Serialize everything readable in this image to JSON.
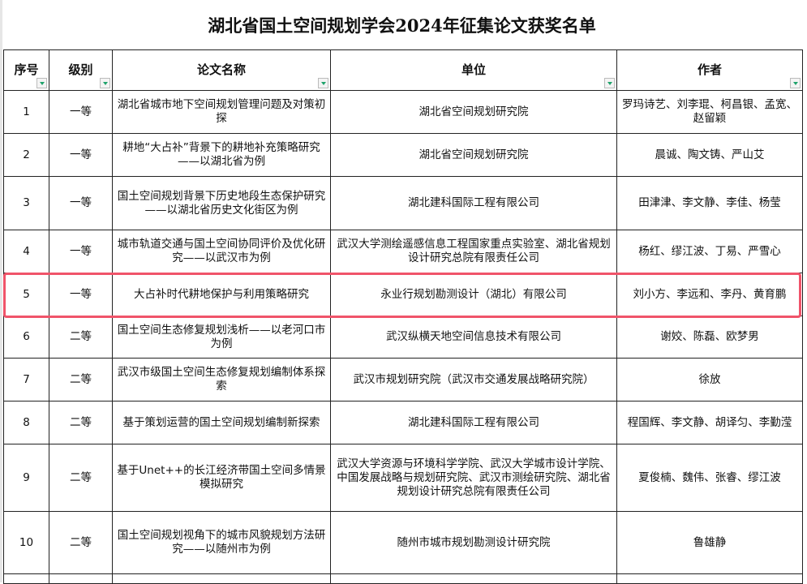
{
  "title": "湖北省国土空间规划学会2024年征集论文获奖名单",
  "headers": [
    "序号",
    "级别",
    "论文名称",
    "单位",
    "作者"
  ],
  "rows": [
    {
      "no": "1",
      "level": "一等",
      "paper": "湖北省城市地下空间规划管理问题及对策初探",
      "unit": "湖北省空间规划研究院",
      "authors": "罗玛诗艺、刘李琨、柯昌银、孟宽、赵留颖"
    },
    {
      "no": "2",
      "level": "一等",
      "paper": "耕地“大占补”背景下的耕地补充策略研究——以湖北省为例",
      "unit": "湖北省空间规划研究院",
      "authors": "晨诚、陶文铸、严山艾"
    },
    {
      "no": "3",
      "level": "一等",
      "paper": "国土空间规划背景下历史地段生态保护研究——以湖北省历史文化街区为例",
      "unit": "湖北建科国际工程有限公司",
      "authors": "田津津、李文静、李佳、杨莹"
    },
    {
      "no": "4",
      "level": "一等",
      "paper": "城市轨道交通与国土空间协同评价及优化研究——以武汉市为例",
      "unit": "武汉大学测绘遥感信息工程国家重点实验室、湖北省规划设计研究总院有限责任公司",
      "authors": "杨红、缪江波、丁易、严雪心"
    },
    {
      "no": "5",
      "level": "一等",
      "paper": "大占补时代耕地保护与利用策略研究",
      "unit": "永业行规划勘测设计（湖北）有限公司",
      "authors": "刘小方、李远和、李丹、黄育鹏"
    },
    {
      "no": "6",
      "level": "二等",
      "paper": "国土空间生态修复规划浅析——以老河口市为例",
      "unit": "武汉纵横天地空间信息技术有限公司",
      "authors": "谢姣、陈磊、欧梦男"
    },
    {
      "no": "7",
      "level": "二等",
      "paper": "武汉市级国土空间生态修复规划编制体系探索",
      "unit": "武汉市规划研究院（武汉市交通发展战略研究院）",
      "authors": "徐放"
    },
    {
      "no": "8",
      "level": "二等",
      "paper": "基于策划运营的国土空间规划编制新探索",
      "unit": "湖北建科国际工程有限公司",
      "authors": "程国辉、李文静、胡译匀、李勤滢"
    },
    {
      "no": "9",
      "level": "二等",
      "paper": "基于Unet++的长江经济带国土空间多情景模拟研究",
      "unit": "武汉大学资源与环境科学学院、武汉大学城市设计学院、中国发展战略与规划研究院、武汉市测绘研究院、湖北省规划设计研究总院有限责任公司",
      "authors": "夏俊楠、魏伟、张睿、缪江波"
    },
    {
      "no": "10",
      "level": "二等",
      "paper": "国土空间规划视角下的城市风貌规划方法研究——以随州市为例",
      "unit": "随州市城市规划勘测设计研究院",
      "authors": "鲁雄静"
    }
  ],
  "highlight_color": "#f0546a",
  "filter_icon_color": "#1fa36b"
}
